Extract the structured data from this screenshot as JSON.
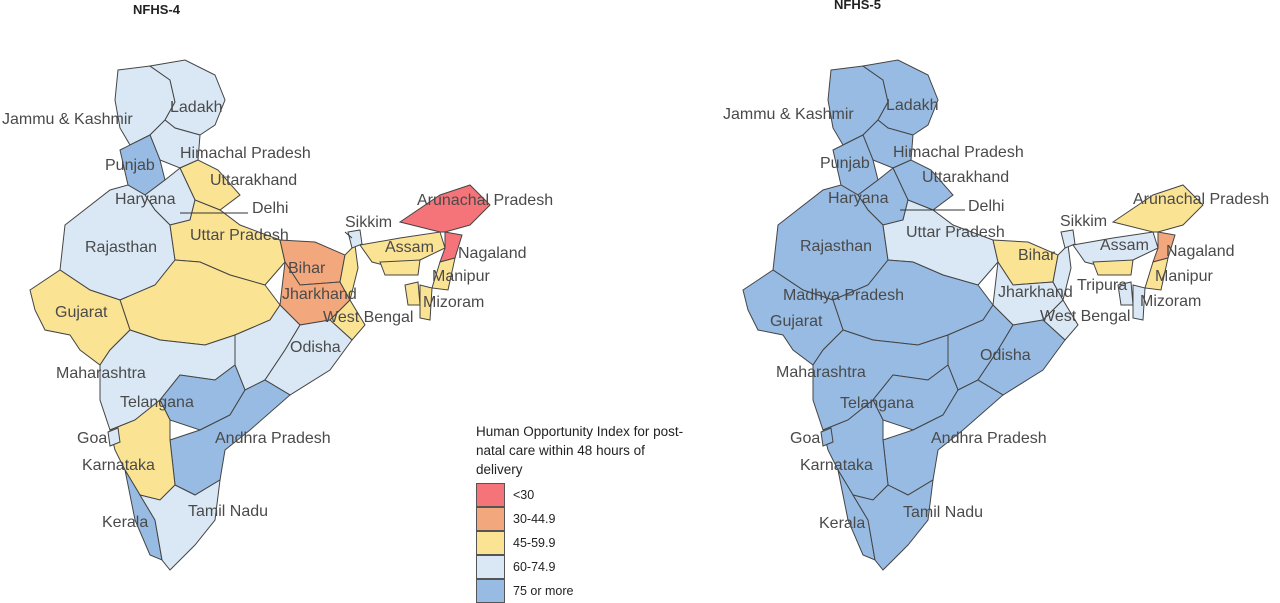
{
  "panels": [
    {
      "title": "NFHS-4"
    },
    {
      "title": "NFHS-5"
    }
  ],
  "colors": {
    "lt30": "#f5747a",
    "c30_44": "#f3a77c",
    "c45_59": "#fbe394",
    "c60_74": "#dae8f5",
    "c75p": "#97bbe3",
    "border": "#444444"
  },
  "legend": {
    "title": "Human Opportunity Index for post-natal care within 48 hours of delivery",
    "items": [
      {
        "label": "<30",
        "color": "#f5747a"
      },
      {
        "label": "30-44.9",
        "color": "#f3a77c"
      },
      {
        "label": "45-59.9",
        "color": "#fbe394"
      },
      {
        "label": "60-74.9",
        "color": "#dae8f5"
      },
      {
        "label": "75 or more",
        "color": "#97bbe3"
      }
    ]
  },
  "map_nfhs4": {
    "labels": [
      "Jammu & Kashmir",
      "Ladakh",
      "Punjab",
      "Himachal Pradesh",
      "Uttarakhand",
      "Haryana",
      "Delhi",
      "Rajasthan",
      "Uttar Pradesh",
      "Arunachal Pradesh",
      "Sikkim",
      "Assam",
      "Nagaland",
      "Bihar",
      "Manipur",
      "Jharkhand",
      "Gujarat",
      "Mizoram",
      "West Bengal",
      "Odisha",
      "Maharashtra",
      "Telangana",
      "Goa",
      "Andhra Pradesh",
      "Karnataka",
      "Tamil Nadu",
      "Kerala"
    ]
  },
  "map_nfhs5": {
    "labels": [
      "Jammu & Kashmir",
      "Ladakh",
      "Punjab",
      "Himachal Pradesh",
      "Uttarakhand",
      "Haryana",
      "Delhi",
      "Rajasthan",
      "Uttar Pradesh",
      "Arunachal Pradesh",
      "Sikkim",
      "Assam",
      "Nagaland",
      "Bihar",
      "Manipur",
      "Madhya Pradesh",
      "Jharkhand",
      "Tripura",
      "Mizoram",
      "Gujarat",
      "West Bengal",
      "Odisha",
      "Maharashtra",
      "Telangana",
      "Goa",
      "Andhra Pradesh",
      "Karnataka",
      "Tamil Nadu",
      "Kerala"
    ]
  }
}
